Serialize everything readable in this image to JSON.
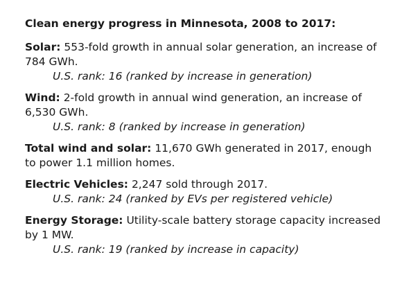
{
  "title": "Clean energy progress in Minnesota, 2008 to 2017:",
  "sections": [
    {
      "label": "Solar:",
      "text": "553-fold growth in annual solar generation, an increase of 784 GWh.",
      "rank": "U.S. rank: 16 (ranked by increase in generation)"
    },
    {
      "label": "Wind:",
      "text": "2-fold growth in annual wind generation, an increase of 6,530 GWh.",
      "rank": "U.S. rank: 8 (ranked by increase in generation)"
    },
    {
      "label": "Total wind and solar:",
      "text": "11,670 GWh generated in 2017, enough to power 1.1 million homes."
    },
    {
      "label": "Electric Vehicles:",
      "text": "2,247 sold through 2017.",
      "rank": "U.S. rank: 24 (ranked by EVs per registered vehicle)"
    },
    {
      "label": "Energy Storage:",
      "text": "Utility-scale battery storage capacity increased by 1 MW.",
      "rank": "U.S. rank: 19 (ranked by increase in capacity)"
    }
  ]
}
